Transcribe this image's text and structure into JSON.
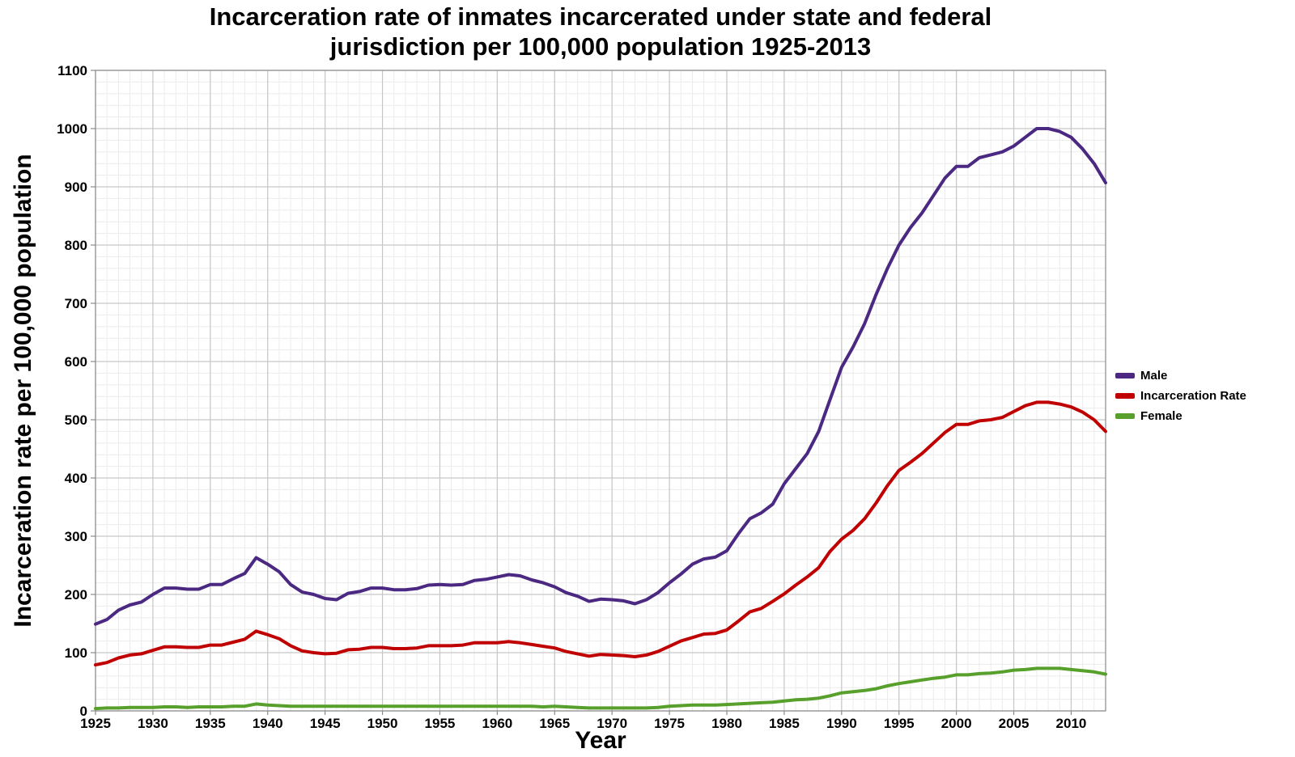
{
  "page": {
    "background": "#ffffff"
  },
  "chart_data": {
    "type": "line",
    "title": "Incarceration rate of inmates incarcerated under state and federal jurisdiction per 100,000 population 1925-2013",
    "title_lines": [
      "Incarceration rate of inmates incarcerated under state and federal",
      "jurisdiction per 100,000 population 1925-2013"
    ],
    "xlabel": "Year",
    "ylabel": "Incarceration rate per 100,000 population",
    "xlim": [
      1925,
      2013
    ],
    "ylim": [
      0,
      1100
    ],
    "xticks": [
      1925,
      1930,
      1935,
      1940,
      1945,
      1950,
      1955,
      1960,
      1965,
      1970,
      1975,
      1980,
      1985,
      1990,
      1995,
      2000,
      2005,
      2010
    ],
    "yticks": [
      0,
      100,
      200,
      300,
      400,
      500,
      600,
      700,
      800,
      900,
      1000,
      1100
    ],
    "x_minor_step": 1,
    "y_minor_step": 20,
    "grid": true,
    "legend_position": "right",
    "colors": {
      "major_grid": "#c6c6c6",
      "minor_grid": "#ececec",
      "border": "#8a8a8a"
    },
    "x": [
      1925,
      1926,
      1927,
      1928,
      1929,
      1930,
      1931,
      1932,
      1933,
      1934,
      1935,
      1936,
      1937,
      1938,
      1939,
      1940,
      1941,
      1942,
      1943,
      1944,
      1945,
      1946,
      1947,
      1948,
      1949,
      1950,
      1951,
      1952,
      1953,
      1954,
      1955,
      1956,
      1957,
      1958,
      1959,
      1960,
      1961,
      1962,
      1963,
      1964,
      1965,
      1966,
      1967,
      1968,
      1969,
      1970,
      1971,
      1972,
      1973,
      1974,
      1975,
      1976,
      1977,
      1978,
      1979,
      1980,
      1981,
      1982,
      1983,
      1984,
      1985,
      1986,
      1987,
      1988,
      1989,
      1990,
      1991,
      1992,
      1993,
      1994,
      1995,
      1996,
      1997,
      1998,
      1999,
      2000,
      2001,
      2002,
      2003,
      2004,
      2005,
      2006,
      2007,
      2008,
      2009,
      2010,
      2011,
      2012,
      2013
    ],
    "series": [
      {
        "name": "Male",
        "color": "#4b2882",
        "values": [
          149,
          157,
          173,
          182,
          187,
          200,
          211,
          211,
          209,
          209,
          217,
          217,
          227,
          236,
          263,
          252,
          239,
          217,
          204,
          200,
          193,
          191,
          202,
          205,
          211,
          211,
          208,
          208,
          210,
          216,
          217,
          216,
          217,
          224,
          226,
          230,
          234,
          232,
          225,
          220,
          213,
          203,
          197,
          188,
          192,
          191,
          189,
          184,
          191,
          203,
          220,
          235,
          252,
          261,
          264,
          275,
          304,
          330,
          340,
          355,
          390,
          416,
          442,
          480,
          535,
          590,
          625,
          665,
          715,
          760,
          800,
          830,
          855,
          885,
          915,
          935,
          935,
          950,
          955,
          960,
          970,
          985,
          1000,
          1000,
          995,
          985,
          965,
          940,
          907
        ]
      },
      {
        "name": "Incarceration Rate",
        "color": "#c00000",
        "values": [
          79,
          83,
          91,
          96,
          98,
          104,
          110,
          110,
          109,
          109,
          113,
          113,
          118,
          123,
          137,
          131,
          124,
          112,
          103,
          100,
          98,
          99,
          105,
          106,
          109,
          109,
          107,
          107,
          108,
          112,
          112,
          112,
          113,
          117,
          117,
          117,
          119,
          117,
          114,
          111,
          108,
          102,
          98,
          94,
          97,
          96,
          95,
          93,
          96,
          102,
          111,
          120,
          126,
          132,
          133,
          139,
          154,
          170,
          176,
          188,
          201,
          216,
          230,
          246,
          274,
          295,
          310,
          330,
          357,
          387,
          413,
          427,
          442,
          460,
          478,
          492,
          492,
          498,
          500,
          504,
          514,
          524,
          530,
          530,
          527,
          522,
          513,
          500,
          480
        ]
      },
      {
        "name": "Female",
        "color": "#58a02c",
        "values": [
          4,
          5,
          5,
          6,
          6,
          6,
          7,
          7,
          6,
          7,
          7,
          7,
          8,
          8,
          12,
          10,
          9,
          8,
          8,
          8,
          8,
          8,
          8,
          8,
          8,
          8,
          8,
          8,
          8,
          8,
          8,
          8,
          8,
          8,
          8,
          8,
          8,
          8,
          8,
          7,
          8,
          7,
          6,
          5,
          5,
          5,
          5,
          5,
          5,
          6,
          8,
          9,
          10,
          10,
          10,
          11,
          12,
          13,
          14,
          15,
          17,
          19,
          20,
          22,
          26,
          31,
          33,
          35,
          38,
          43,
          47,
          50,
          53,
          56,
          58,
          62,
          62,
          64,
          65,
          67,
          70,
          71,
          73,
          73,
          73,
          71,
          69,
          67,
          63
        ]
      }
    ]
  }
}
